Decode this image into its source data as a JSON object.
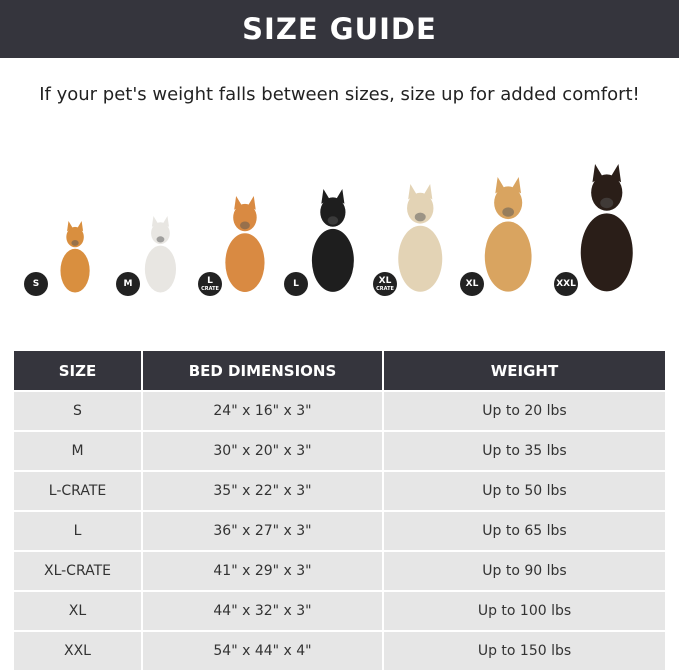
{
  "title": "SIZE GUIDE",
  "subtitle": "If your pet's weight falls between sizes, size up for added comfort!",
  "dogs": [
    {
      "badge": "S",
      "sub": "",
      "color": "#d98f3f"
    },
    {
      "badge": "M",
      "sub": "",
      "color": "#e8e6e2"
    },
    {
      "badge": "L",
      "sub": "CRATE",
      "color": "#d98a42"
    },
    {
      "badge": "L",
      "sub": "",
      "color": "#1e1e1e"
    },
    {
      "badge": "XL",
      "sub": "CRATE",
      "color": "#e3d3b5"
    },
    {
      "badge": "XL",
      "sub": "",
      "color": "#d9a460"
    },
    {
      "badge": "XXL",
      "sub": "",
      "color": "#2a1e18"
    }
  ],
  "table": {
    "headers": [
      "SIZE",
      "BED DIMENSIONS",
      "WEIGHT"
    ],
    "rows": [
      [
        "S",
        "24\" x 16\" x 3\"",
        "Up to 20 lbs"
      ],
      [
        "M",
        "30\" x 20\" x 3\"",
        "Up to 35 lbs"
      ],
      [
        "L-CRATE",
        "35\" x 22\" x 3\"",
        "Up to 50 lbs"
      ],
      [
        "L",
        "36\" x 27\" x 3\"",
        "Up to 65 lbs"
      ],
      [
        "XL-CRATE",
        "41\" x 29\" x 3\"",
        "Up to 90 lbs"
      ],
      [
        "XL",
        "44\" x 32\" x 3\"",
        "Up to 100 lbs"
      ],
      [
        "XXL",
        "54\" x 44\" x 4\"",
        "Up to 150 lbs"
      ]
    ]
  }
}
